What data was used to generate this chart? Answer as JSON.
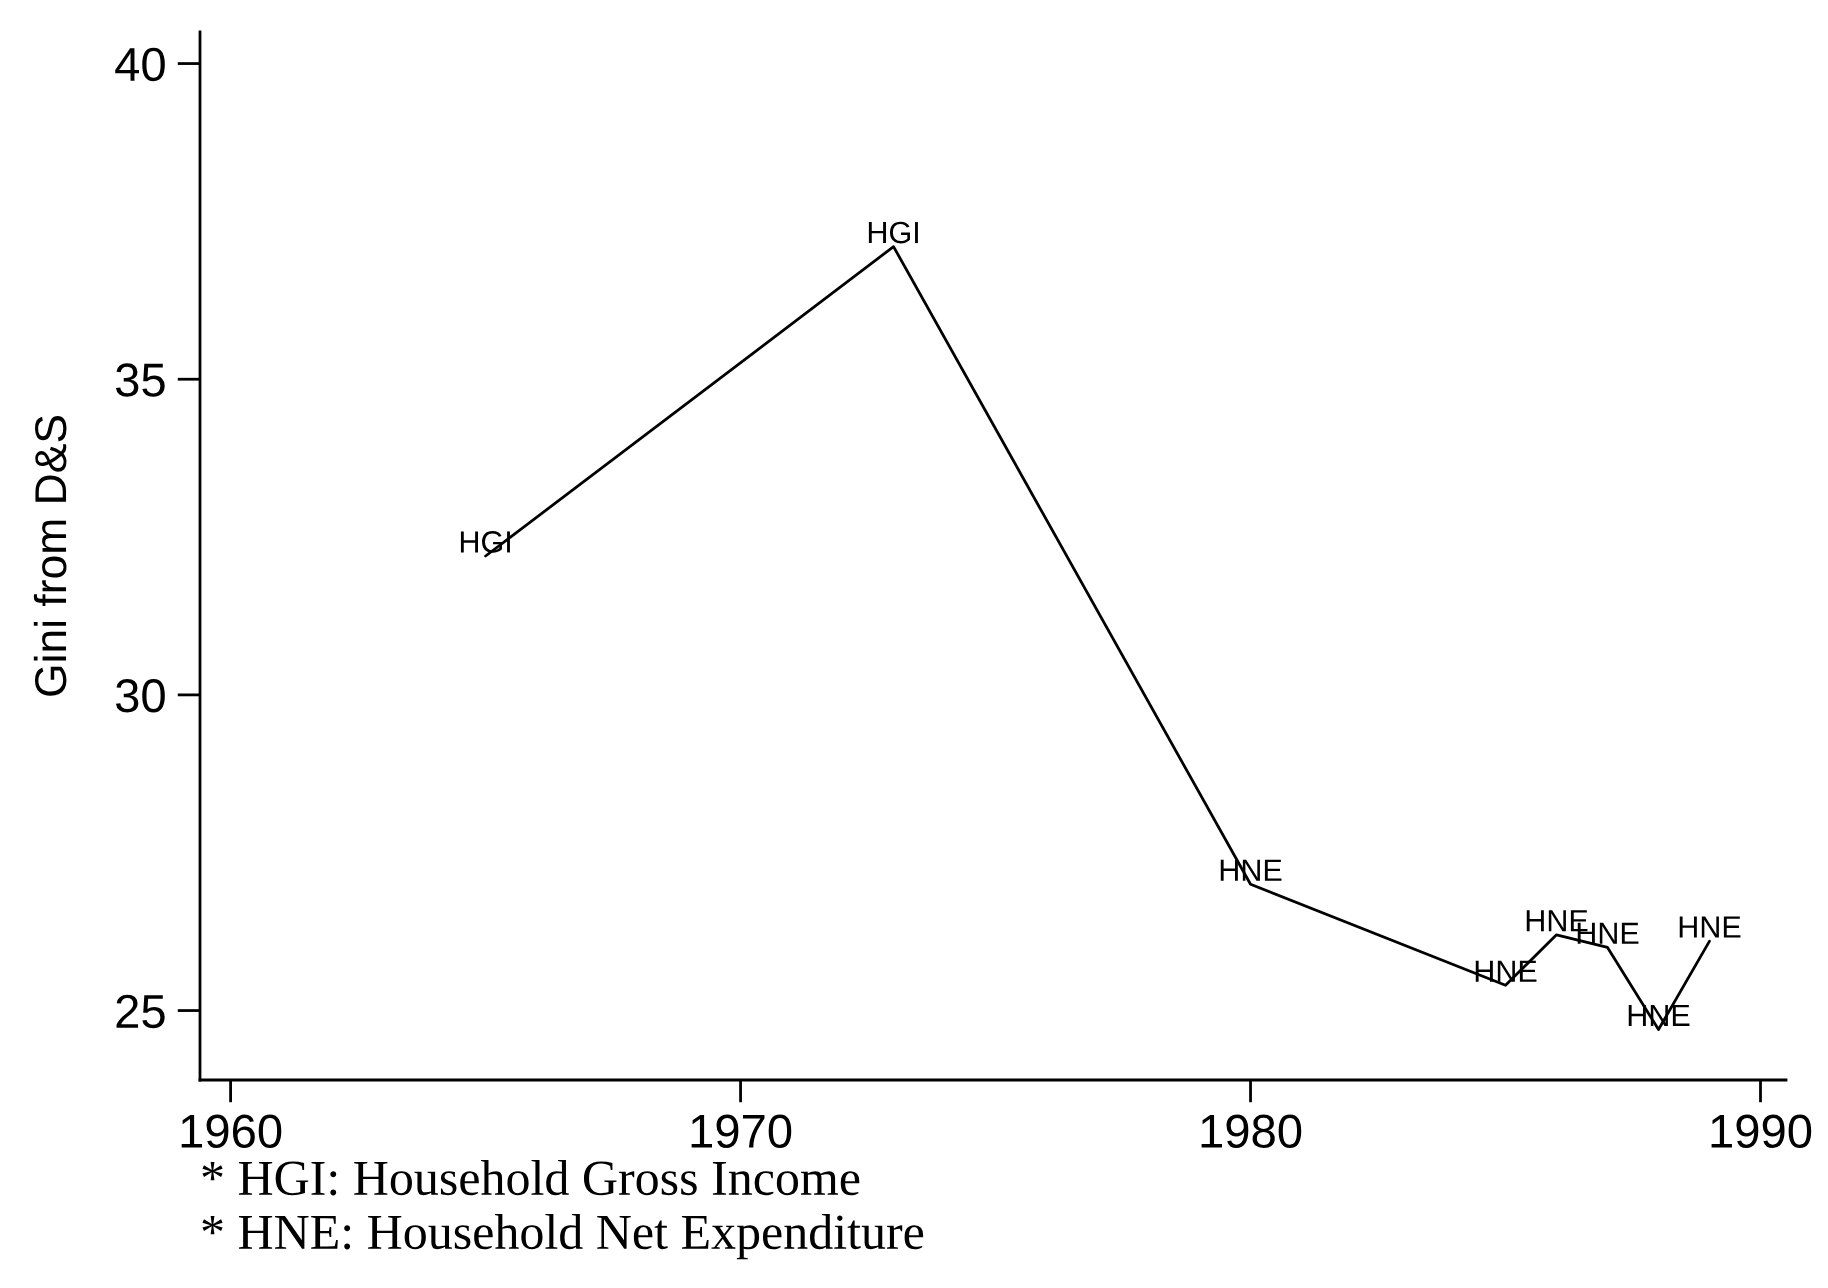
{
  "chart_data": {
    "type": "line",
    "ylabel": "Gini from D&S",
    "x": [
      1965,
      1973,
      1980,
      1985,
      1986,
      1987,
      1988,
      1989
    ],
    "series": [
      {
        "color": "#000000",
        "values": [
          32.2,
          37.1,
          27.0,
          25.4,
          26.2,
          26.0,
          24.7,
          26.1
        ]
      }
    ],
    "xlim": [
      1959.4,
      1990.5
    ],
    "ylim": [
      23.9,
      40.5
    ],
    "xticks": [
      1960,
      1970,
      1980,
      1990
    ],
    "yticks": [
      25,
      30,
      35,
      40
    ],
    "grid": false,
    "marker": "none",
    "line_style": "solid",
    "annotations": [
      {
        "text": "HGI",
        "x": 1965,
        "y": 32.2
      },
      {
        "text": "HGI",
        "x": 1973,
        "y": 37.1
      },
      {
        "text": "HNE",
        "x": 1980,
        "y": 27.0
      },
      {
        "text": "HNE",
        "x": 1985,
        "y": 25.4
      },
      {
        "text": "HNE",
        "x": 1986,
        "y": 26.2
      },
      {
        "text": "HNE",
        "x": 1987,
        "y": 26.0
      },
      {
        "text": "HNE",
        "x": 1988,
        "y": 24.7
      },
      {
        "text": "HNE",
        "x": 1989,
        "y": 26.1
      },
      "* HGI: Household Gross Income",
      "* HNE: Household Net Expenditure"
    ]
  }
}
